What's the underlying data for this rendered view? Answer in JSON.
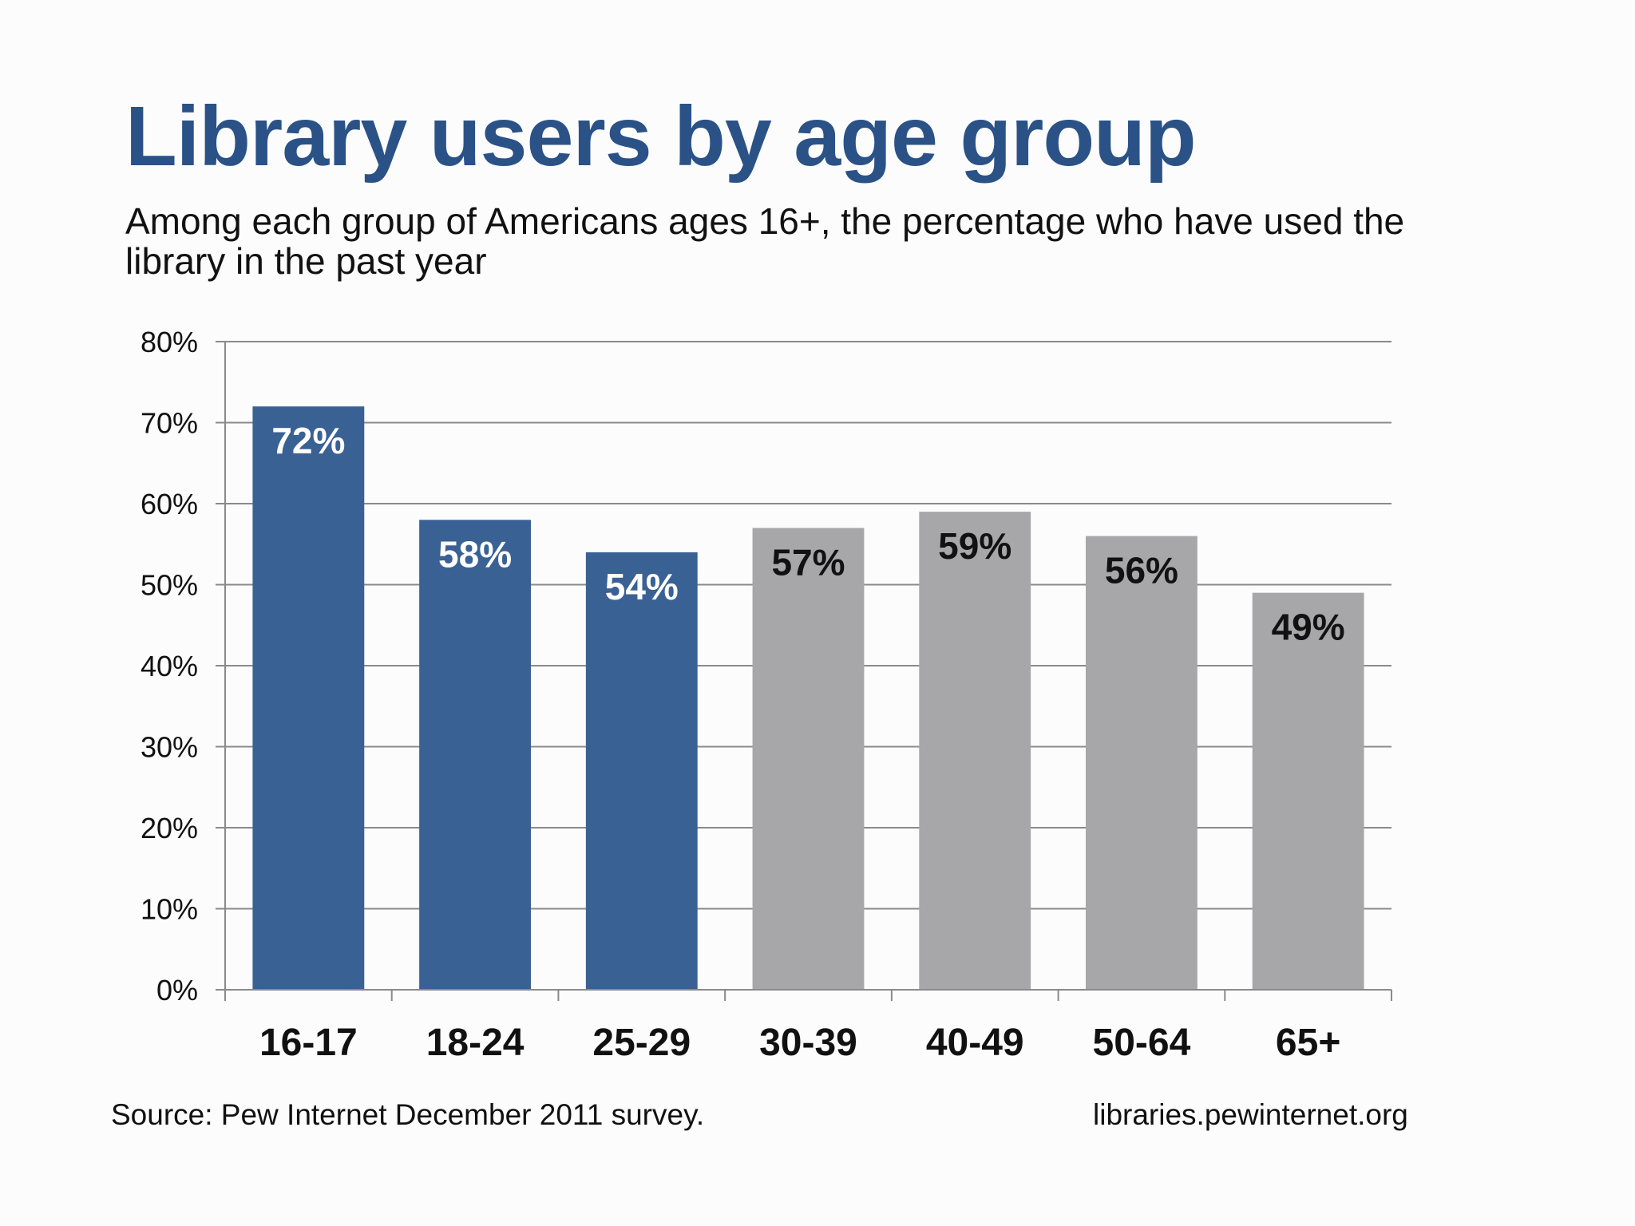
{
  "chart_data": {
    "type": "bar",
    "title": "Library users by age group",
    "subtitle": "Among each group of Americans ages 16+, the percentage who have used the library in the past year",
    "xlabel": "",
    "ylabel": "",
    "categories": [
      "16-17",
      "18-24",
      "25-29",
      "30-39",
      "40-49",
      "50-64",
      "65+"
    ],
    "values": [
      72,
      58,
      54,
      57,
      59,
      56,
      49
    ],
    "value_labels": [
      "72%",
      "58%",
      "54%",
      "57%",
      "59%",
      "56%",
      "49%"
    ],
    "bar_colors": [
      "#3a6194",
      "#3a6194",
      "#3a6194",
      "#a7a6a9",
      "#a7a6a9",
      "#a7a6a9",
      "#a7a6a9"
    ],
    "label_colors": [
      "#ffffff",
      "#ffffff",
      "#ffffff",
      "#111111",
      "#111111",
      "#111111",
      "#111111"
    ],
    "ylim": [
      0,
      80
    ],
    "yticks": [
      0,
      10,
      20,
      30,
      40,
      50,
      60,
      70,
      80
    ],
    "ytick_labels": [
      "0%",
      "10%",
      "20%",
      "30%",
      "40%",
      "50%",
      "60%",
      "70%",
      "80%"
    ],
    "grid": true,
    "legend": "none"
  },
  "footer": {
    "source": "Source: Pew Internet December 2011 survey.",
    "url": "libraries.pewinternet.org"
  }
}
